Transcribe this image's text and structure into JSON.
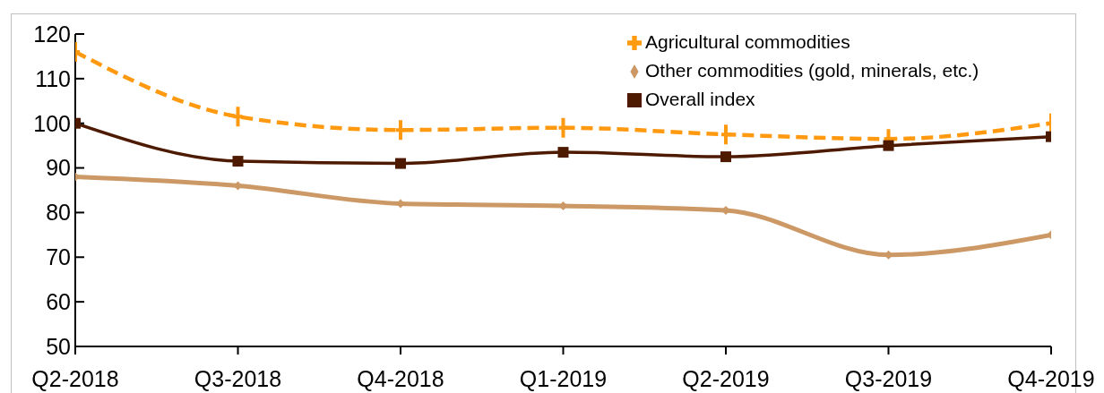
{
  "chart_data": {
    "type": "line",
    "categories": [
      "Q2-2018",
      "Q3-2018",
      "Q4-2018",
      "Q1-2019",
      "Q2-2019",
      "Q3-2019",
      "Q4-2019"
    ],
    "series": [
      {
        "name": "Agricultural commodities",
        "color": "#ff9910",
        "values": [
          116,
          101.5,
          98.5,
          99,
          97.5,
          96.5,
          100
        ],
        "marker": "cross",
        "line_style": "dashed"
      },
      {
        "name": "Other commodities (gold, minerals, etc.)",
        "color": "#cc9966",
        "values": [
          88,
          86,
          82,
          81.5,
          80.5,
          70.5,
          75
        ],
        "marker": "diamond",
        "line_style": "solid"
      },
      {
        "name": "Overall index",
        "color": "#4d1a00",
        "values": [
          100,
          91.5,
          91,
          93.5,
          92.5,
          95,
          97
        ],
        "marker": "square",
        "line_style": "solid"
      }
    ],
    "ylim": [
      50,
      120
    ],
    "yticks": [
      50,
      60,
      70,
      80,
      90,
      100,
      110,
      120
    ],
    "legend": "top right"
  }
}
